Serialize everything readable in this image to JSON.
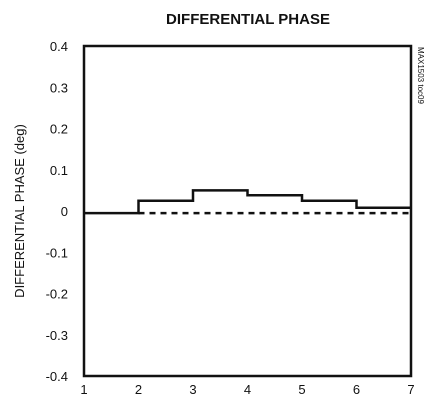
{
  "chart_data": {
    "type": "line",
    "title": "DIFFERENTIAL PHASE",
    "xlabel": "",
    "ylabel": "DIFFERENTIAL PHASE (deg)",
    "xlim": [
      1,
      7
    ],
    "ylim": [
      -0.4,
      0.4
    ],
    "x_ticks": [
      "1",
      "2",
      "3",
      "4",
      "5",
      "6",
      "7"
    ],
    "y_ticks": [
      "0.4",
      "0.3",
      "0.2",
      "0.1",
      "0",
      "-0.1",
      "-0.2",
      "-0.3",
      "-0.4"
    ],
    "y_tick_values": [
      0.4,
      0.3,
      0.2,
      0.1,
      0,
      -0.1,
      -0.2,
      -0.3,
      -0.4
    ],
    "x_tick_values": [
      1,
      2,
      3,
      4,
      5,
      6,
      7
    ],
    "grid": false,
    "series": [
      {
        "style": "solid-step",
        "x": [
          1,
          2,
          2,
          3,
          3,
          4,
          4,
          5,
          5,
          6,
          6,
          7
        ],
        "y": [
          -0.005,
          -0.005,
          0.025,
          0.025,
          0.05,
          0.05,
          0.038,
          0.038,
          0.025,
          0.025,
          0.008,
          0.008
        ]
      },
      {
        "style": "dashed",
        "x": [
          2,
          7
        ],
        "y": [
          -0.005,
          -0.005
        ]
      }
    ],
    "watermark": "MAX1503 toc09"
  }
}
